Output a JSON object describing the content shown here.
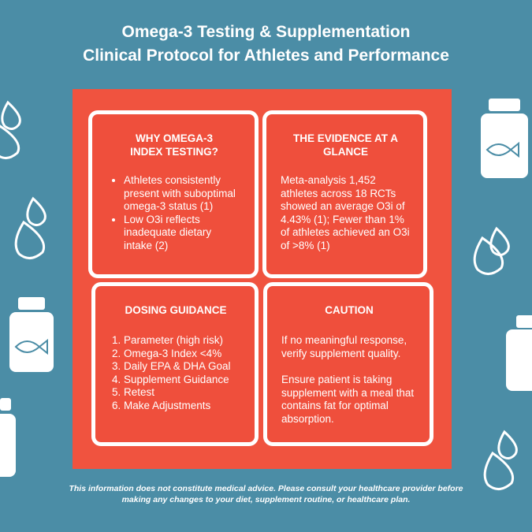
{
  "header": {
    "title_line1": "Omega-3 Testing & Supplementation",
    "title_line2": "Clinical Protocol for Athletes and Performance"
  },
  "boxes": [
    {
      "heading": "WHY OMEGA-3 INDEX TESTING?",
      "bullets": [
        "Athletes consistently present with suboptimal omega-3 status (1)",
        "Low O3i reflects inadequate dietary intake (2)"
      ]
    },
    {
      "heading": "THE EVIDENCE AT A GLANCE",
      "paragraphs": [
        "Meta-analysis 1,452 athletes across 18 RCTs showed an average O3i of 4.43% (1); Fewer than 1% of athletes achieved an O3i of >8% (1)"
      ]
    },
    {
      "heading": "DOSING GUIDANCE",
      "steps": [
        "Parameter (high risk)",
        "Omega-3 Index <4%",
        "Daily EPA & DHA Goal",
        "Supplement Guidance",
        "Retest",
        "Make Adjustments"
      ]
    },
    {
      "heading": "CAUTION",
      "paragraphs": [
        "If no meaningful response, verify supplement quality.",
        "Ensure patient is taking supplement with a meal that contains fat for optimal absorption."
      ]
    }
  ],
  "footer": {
    "lines": [
      "This information does not constitute medical advice. Please consult your healthcare provider before",
      "making any changes to your diet, supplement routine, or healthcare plan."
    ]
  }
}
